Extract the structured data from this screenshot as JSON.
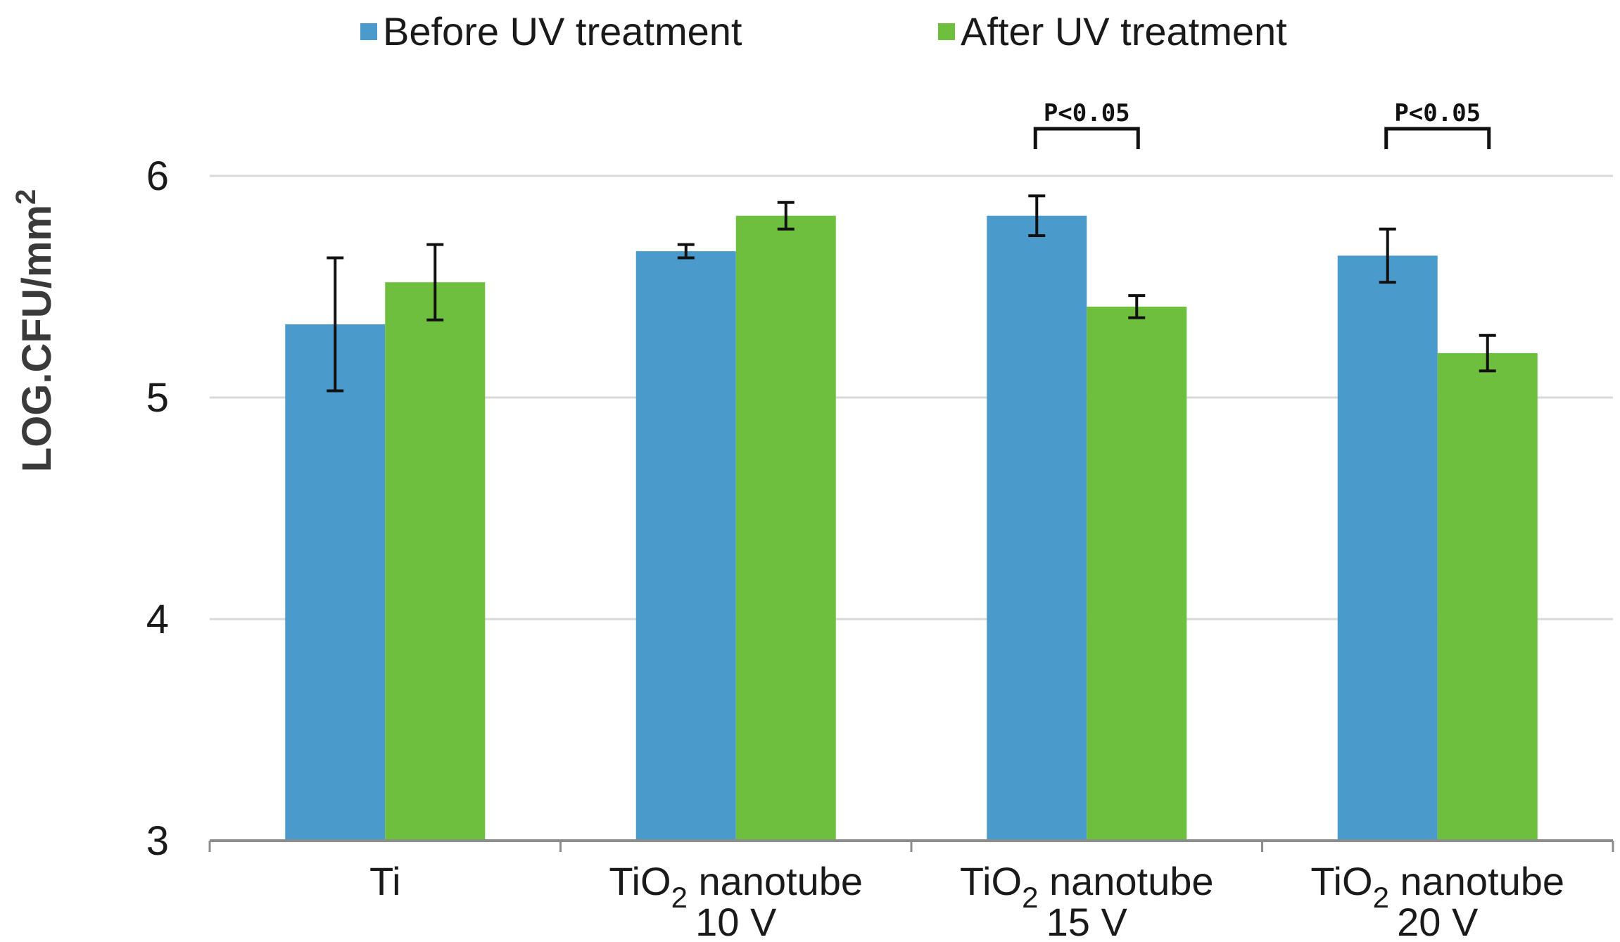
{
  "chart_data": {
    "type": "bar",
    "title": "",
    "xlabel": "",
    "ylabel": "LOG.CFU/mm",
    "ylabel_superscript": "2",
    "ylim": [
      3,
      6
    ],
    "yticks": [
      "3",
      "4",
      "5",
      "6"
    ],
    "grid": true,
    "legend_position": "top",
    "categories": [
      {
        "main": "Ti",
        "sub": "",
        "suffix": "",
        "line2": ""
      },
      {
        "main": "TiO",
        "sub": "2",
        "suffix": " nanotube",
        "line2": "10 V"
      },
      {
        "main": "TiO",
        "sub": "2",
        "suffix": " nanotube",
        "line2": "15 V"
      },
      {
        "main": "TiO",
        "sub": "2",
        "suffix": " nanotube",
        "line2": "20 V"
      }
    ],
    "series": [
      {
        "name": "Before UV treatment",
        "color": "#4a9bcb",
        "values": [
          5.33,
          5.66,
          5.82,
          5.64
        ],
        "errors": [
          0.3,
          0.03,
          0.09,
          0.12
        ]
      },
      {
        "name": "After UV treatment",
        "color": "#6fbf3e",
        "values": [
          5.52,
          5.82,
          5.41,
          5.2
        ],
        "errors": [
          0.17,
          0.06,
          0.05,
          0.08
        ]
      }
    ],
    "annotations": [
      {
        "text": "P<0.05",
        "category_index": 2
      },
      {
        "text": "P<0.05",
        "category_index": 3
      }
    ]
  }
}
